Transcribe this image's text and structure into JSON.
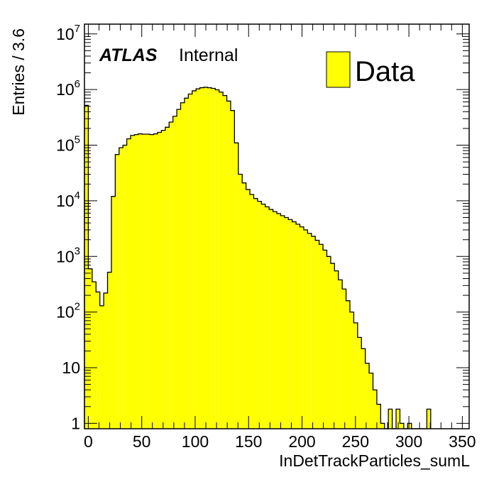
{
  "chart_data": {
    "type": "histogram",
    "xlabel": "InDetTrackParticles_sumL",
    "ylabel": "Entries / 3.6",
    "xlim": [
      -3.6,
      356.4
    ],
    "ylim": [
      0.8,
      15000000
    ],
    "yscale": "log",
    "bin_width": 3.6,
    "x_ticks": [
      "0",
      "50",
      "100",
      "150",
      "200",
      "250",
      "300",
      "350"
    ],
    "y_ticks": [
      {
        "value": 1,
        "base": "1",
        "exp": ""
      },
      {
        "value": 10,
        "base": "10",
        "exp": ""
      },
      {
        "value": 100,
        "base": "10",
        "exp": "2"
      },
      {
        "value": 1000,
        "base": "10",
        "exp": "3"
      },
      {
        "value": 10000,
        "base": "10",
        "exp": "4"
      },
      {
        "value": 100000,
        "base": "10",
        "exp": "5"
      },
      {
        "value": 1000000,
        "base": "10",
        "exp": "6"
      },
      {
        "value": 10000000,
        "base": "10",
        "exp": "7"
      }
    ],
    "fill_color": "#ffff00",
    "line_color": "#000000",
    "legend": {
      "label": "Data",
      "position": "top-right"
    },
    "atlas_label": {
      "bold": "ATLAS",
      "text": "Internal"
    },
    "series": [
      {
        "values": [
          520000,
          600,
          350,
          230,
          130,
          220,
          520,
          12000,
          68000,
          90000,
          100000,
          130000,
          150000,
          155000,
          160000,
          158000,
          158000,
          155000,
          160000,
          170000,
          185000,
          210000,
          260000,
          330000,
          440000,
          580000,
          700000,
          830000,
          950000,
          1030000,
          1080000,
          1100000,
          1080000,
          1050000,
          990000,
          900000,
          780000,
          620000,
          420000,
          110000,
          30000,
          21000,
          16000,
          13000,
          11000,
          9800,
          8700,
          7800,
          7000,
          6400,
          5900,
          5400,
          5000,
          4600,
          4200,
          3800,
          3400,
          3000,
          2600,
          2300,
          1950,
          1650,
          1300,
          1000,
          750,
          550,
          380,
          260,
          160,
          100,
          64,
          35,
          22,
          12,
          8,
          4,
          2.2,
          1,
          0,
          1.8,
          0,
          1.8,
          1,
          0,
          1,
          0,
          0,
          0,
          0,
          1.8
        ]
      }
    ]
  }
}
